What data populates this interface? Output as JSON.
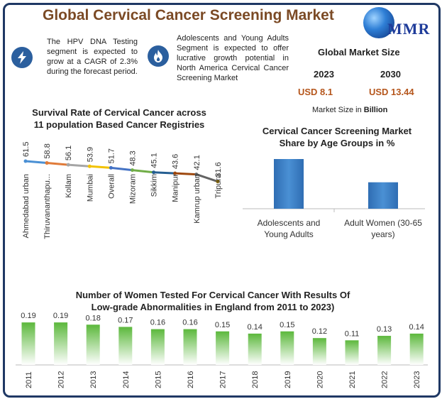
{
  "title": "Global Cervical Cancer Screening Market",
  "logo_text": "MMR",
  "highlights": [
    {
      "icon": "lightning-icon",
      "text": "The HPV DNA Testing segment is expected to grow at a CAGR of 2.3% during the forecast period."
    },
    {
      "icon": "flame-icon",
      "text": "Adolescents and Young Adults Segment is expected to offer lucrative growth potential in North America Cervical Cancer Screening Market"
    }
  ],
  "market_size": {
    "title": "Global Market Size",
    "year_a": "2023",
    "year_b": "2030",
    "value_a": "USD 8.1",
    "value_b": "USD 13.44",
    "unit_prefix": "Market Size in ",
    "unit_bold": "Billion"
  },
  "colors": {
    "frame": "#1f3864",
    "title_brown": "#7b4a25",
    "value_orange": "#b5561c",
    "blue_bar": "#4a90d4",
    "green_bar": "#5cb83c"
  },
  "chart_data": [
    {
      "type": "line",
      "title": "Survival Rate of Cervical Cancer across 11 population Based Cancer Registries",
      "categories": [
        "Ahmedabad urban",
        "Thiruvananthapu...",
        "Kollam",
        "Mumbai",
        "Overall",
        "Mizoram",
        "Sikkim",
        "Manipur",
        "Kamrup urban",
        "Tripura"
      ],
      "values": [
        61.5,
        58.8,
        56.1,
        53.9,
        51.7,
        48.3,
        45.1,
        43.6,
        42.1,
        31.6
      ],
      "segment_colors": [
        "#4a90d4",
        "#e07b39",
        "#a5a5a5",
        "#f2c200",
        "#4472c4",
        "#70ad47",
        "#255e91",
        "#9e480e",
        "#636363",
        "#997300"
      ],
      "ylim": [
        0,
        100
      ],
      "grid": false
    },
    {
      "type": "bar",
      "title": "Cervical Cancer Screening Market Share by Age Groups in %",
      "categories": [
        "Adolescents and Young Adults",
        "Adult Women (30-65 years)"
      ],
      "category_lines": [
        [
          "Adolescents and",
          "Young Adults"
        ],
        [
          "Adult Women (30-65",
          "years)"
        ]
      ],
      "values": [
        62,
        33
      ],
      "grid": false
    },
    {
      "type": "bar",
      "title": "Number of Women Tested For Cervical Cancer With Results Of Low-grade Abnormalities in England from 2011 to 2023)",
      "categories": [
        "2011",
        "2012",
        "2013",
        "2014",
        "2015",
        "2016",
        "2017",
        "2018",
        "2019",
        "2020",
        "2021",
        "2022",
        "2023"
      ],
      "values": [
        0.19,
        0.19,
        0.18,
        0.17,
        0.16,
        0.16,
        0.15,
        0.14,
        0.15,
        0.12,
        0.11,
        0.13,
        0.14
      ],
      "ylim": [
        0,
        0.2
      ],
      "grid": false
    }
  ]
}
